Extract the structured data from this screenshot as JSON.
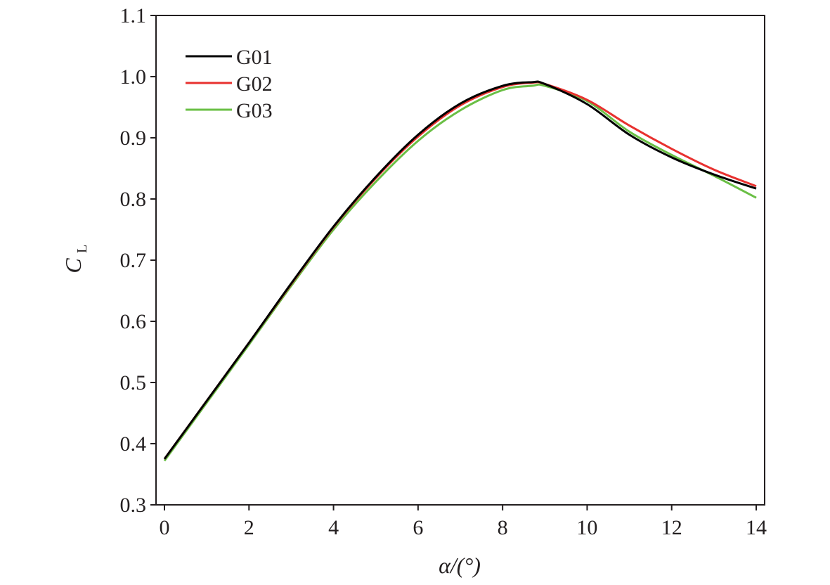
{
  "chart_data": {
    "type": "line",
    "xlabel": "α/(°)",
    "ylabel": "C",
    "ylabel_subscript": "L",
    "xlim": [
      -0.2,
      14.2
    ],
    "ylim": [
      0.3,
      1.1
    ],
    "xticks": [
      0,
      2,
      4,
      6,
      8,
      10,
      12,
      14
    ],
    "yticks": [
      0.3,
      0.4,
      0.5,
      0.6,
      0.7,
      0.8,
      0.9,
      1.0,
      1.1
    ],
    "ytick_labels": [
      "0.3",
      "0.4",
      "0.5",
      "0.6",
      "0.7",
      "0.8",
      "0.9",
      "1.0",
      "1.1"
    ],
    "grid": false,
    "legend_position": "top-left",
    "x": [
      0,
      1,
      2,
      3,
      4,
      5,
      6,
      7,
      8,
      8.7,
      9,
      10,
      11,
      12,
      13,
      14
    ],
    "series": [
      {
        "name": "G01",
        "color": "#000000",
        "values": [
          0.375,
          0.47,
          0.565,
          0.662,
          0.755,
          0.836,
          0.905,
          0.956,
          0.985,
          0.991,
          0.988,
          0.955,
          0.905,
          0.868,
          0.84,
          0.817
        ]
      },
      {
        "name": "G02",
        "color": "#e8312f",
        "values": [
          0.375,
          0.47,
          0.565,
          0.661,
          0.754,
          0.834,
          0.902,
          0.953,
          0.983,
          0.99,
          0.988,
          0.962,
          0.92,
          0.882,
          0.848,
          0.821
        ]
      },
      {
        "name": "G03",
        "color": "#6abf45",
        "values": [
          0.372,
          0.467,
          0.562,
          0.658,
          0.75,
          0.828,
          0.895,
          0.945,
          0.978,
          0.985,
          0.985,
          0.96,
          0.91,
          0.872,
          0.838,
          0.802
        ]
      }
    ]
  }
}
